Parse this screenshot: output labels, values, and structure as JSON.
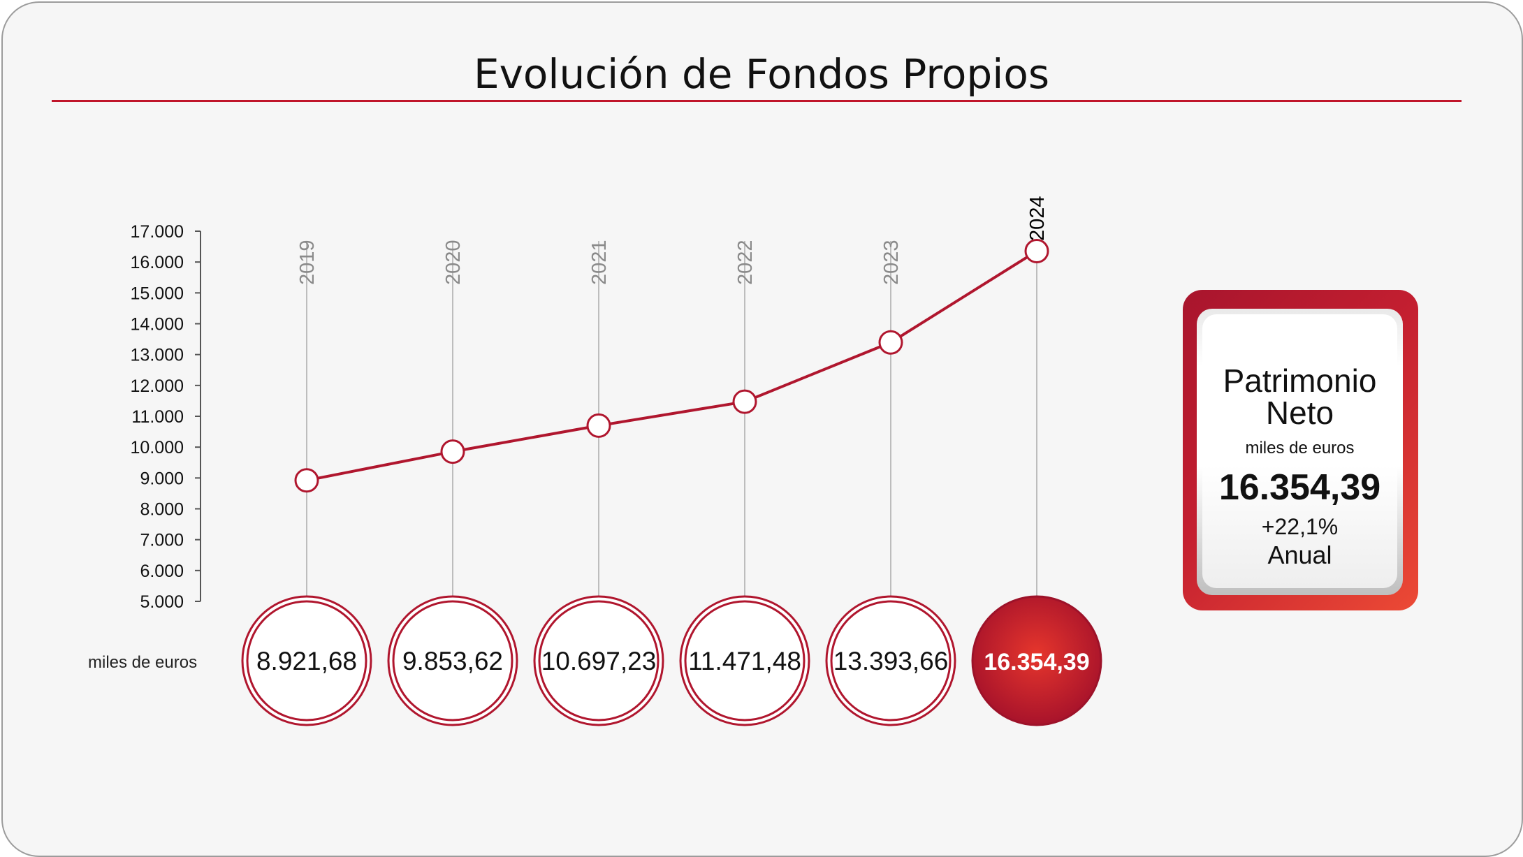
{
  "title": "Evolución de Fondos Propios",
  "colors": {
    "accent": "#b0162e",
    "accent_bright": "#e5342c",
    "rule": "#c0152a",
    "background": "#f6f6f6",
    "guide": "#bdbdbd"
  },
  "unit_label": "miles de euros",
  "summary": {
    "title": "Patrimonio Neto",
    "unit": "miles de euros",
    "value": "16.354,39",
    "change": "+22,1%",
    "period": "Anual"
  },
  "chart_data": {
    "type": "line",
    "title": "Evolución de Fondos Propios",
    "categories": [
      "2019",
      "2020",
      "2021",
      "2022",
      "2023",
      "2024"
    ],
    "values": [
      8921.68,
      9853.62,
      10697.23,
      11471.48,
      13393.66,
      16354.39
    ],
    "value_labels": [
      "8.921,68",
      "9.853,62",
      "10.697,23",
      "11.471,48",
      "13.393,66",
      "16.354,39"
    ],
    "highlight_index": 5,
    "ylim": [
      5000,
      17000
    ],
    "y_ticks": [
      5000,
      6000,
      7000,
      8000,
      9000,
      10000,
      11000,
      12000,
      13000,
      14000,
      15000,
      16000,
      17000
    ],
    "y_tick_labels": [
      "5.000",
      "6.000",
      "7.000",
      "8.000",
      "9.000",
      "10.000",
      "11.000",
      "12.000",
      "13.000",
      "14.000",
      "15.000",
      "16.000",
      "17.000"
    ],
    "unit": "miles de euros",
    "grid": false
  }
}
